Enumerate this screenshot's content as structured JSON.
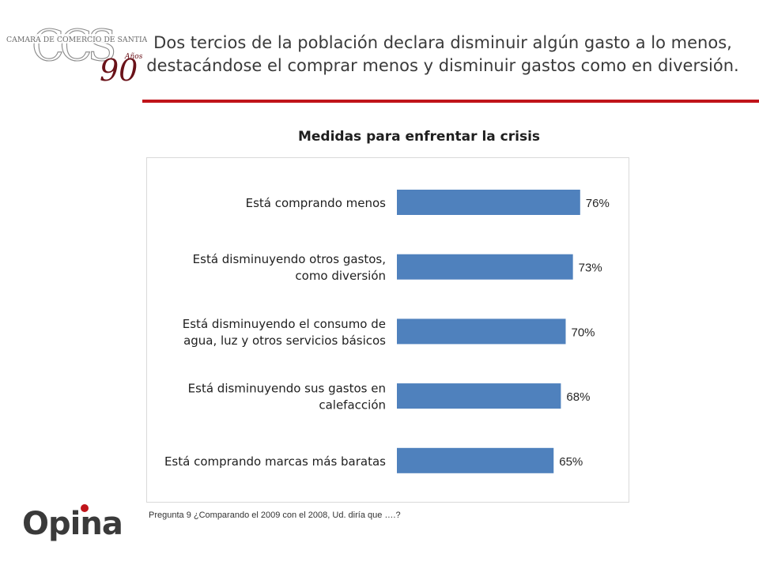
{
  "header": {
    "title": "Dos tercios de la población declara disminuir algún gasto a lo menos, destacándose el comprar menos y disminuir gastos como en diversión.",
    "accent_color": "#c0141a"
  },
  "logos": {
    "ccs_text": "CCS",
    "ccs_caption": "CAMARA DE COMERCIO DE SANTIAGO",
    "ccs_anniversary": "90",
    "ccs_anniversary_word": "Años",
    "opina_text": "Opina",
    "opina_color": "#c0141a"
  },
  "chart_data": {
    "type": "bar",
    "orientation": "horizontal",
    "title": "Medidas para enfrentar la crisis",
    "categories": [
      "Está comprando menos",
      "Está disminuyendo otros gastos, como diversión",
      "Está disminuyendo el consumo de agua, luz y otros servicios básicos",
      "Está disminuyendo sus gastos en calefacción",
      "Está comprando marcas más baratas"
    ],
    "category_lines": [
      [
        "Está comprando menos"
      ],
      [
        "Está disminuyendo otros gastos,",
        "como diversión"
      ],
      [
        "Está disminuyendo el consumo de",
        "agua, luz y otros servicios básicos"
      ],
      [
        "Está disminuyendo sus gastos en",
        "calefacción"
      ],
      [
        "Está comprando marcas más baratas"
      ]
    ],
    "values": [
      76,
      73,
      70,
      68,
      65
    ],
    "data_labels": [
      "76%",
      "73%",
      "70%",
      "68%",
      "65%"
    ],
    "xlim": [
      0,
      100
    ],
    "grid": false,
    "legend": "none",
    "bar_color": "#4f81bd"
  },
  "footnote": "Pregunta 9 ¿Comparando el 2009 con el 2008, Ud. diría que ….?"
}
